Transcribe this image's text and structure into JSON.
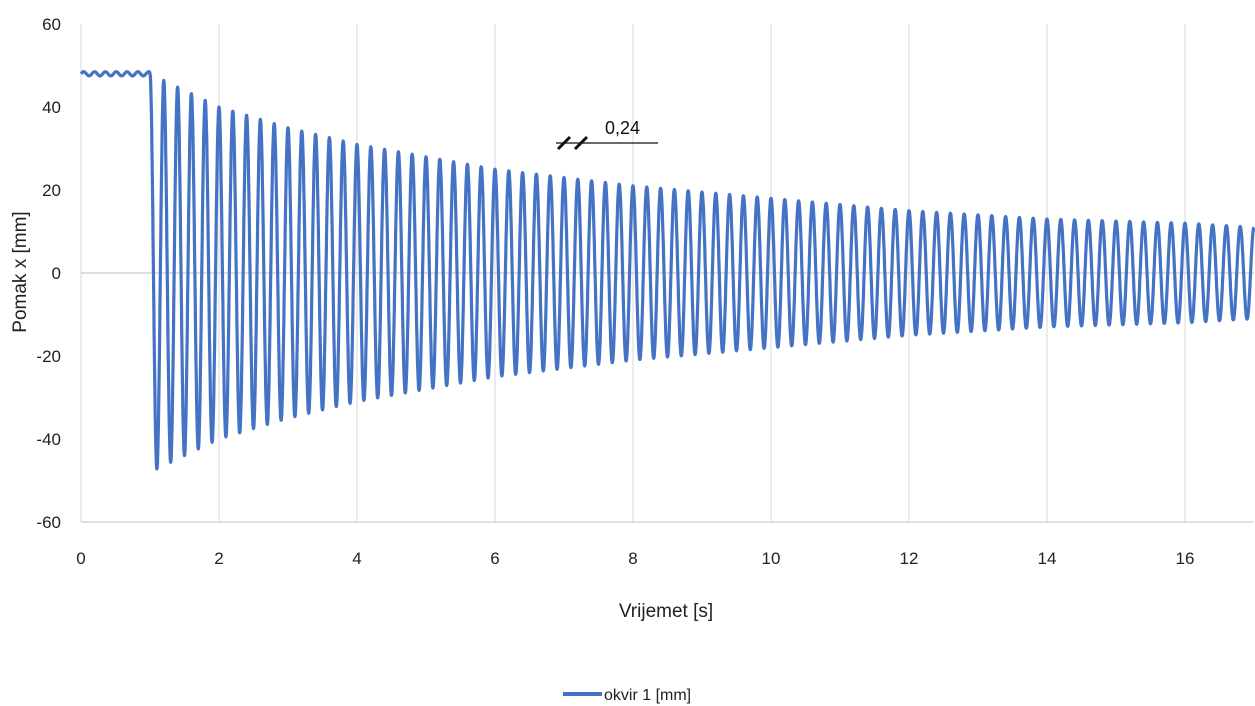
{
  "chart_data": {
    "type": "line",
    "xlabel": "Vrijemet [s]",
    "ylabel": "Pomak x [mm]",
    "xlim": [
      0,
      17
    ],
    "ylim": [
      -60,
      60
    ],
    "x_ticks": [
      0,
      2,
      4,
      6,
      8,
      10,
      12,
      14,
      16
    ],
    "y_ticks": [
      60,
      40,
      20,
      0,
      -20,
      -40,
      -60
    ],
    "grid": "vertical",
    "legend_position": "bottom",
    "annotation": "0,24",
    "series": [
      {
        "name": "okvir 1 [mm]",
        "color": "#4472C4",
        "initial_offset": 48,
        "release_time": 1.0,
        "frequency_hz": 5.0,
        "envelope_peaks": [
          {
            "t": 1.0,
            "amp": 48
          },
          {
            "t": 2.0,
            "amp": 40
          },
          {
            "t": 3.0,
            "amp": 35
          },
          {
            "t": 4.0,
            "amp": 31
          },
          {
            "t": 6.0,
            "amp": 25
          },
          {
            "t": 8.0,
            "amp": 21
          },
          {
            "t": 10.0,
            "amp": 18
          },
          {
            "t": 12.0,
            "amp": 15
          },
          {
            "t": 14.0,
            "amp": 13
          },
          {
            "t": 16.0,
            "amp": 12
          },
          {
            "t": 17.0,
            "amp": 11
          }
        ]
      }
    ]
  }
}
